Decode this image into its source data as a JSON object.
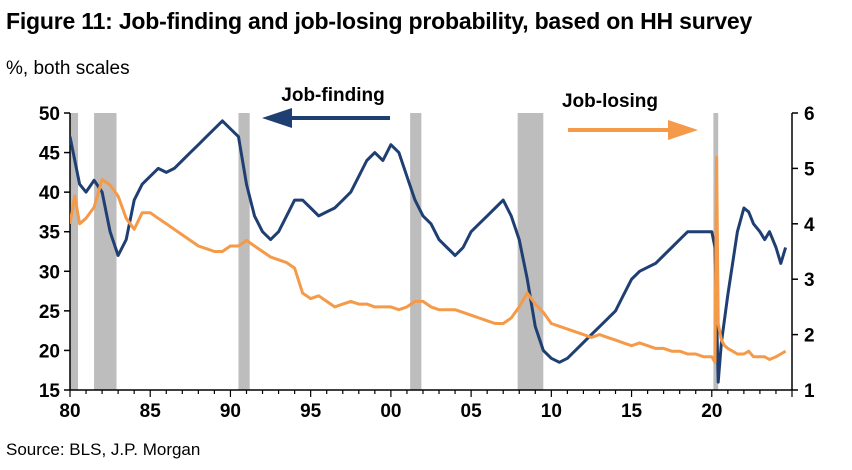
{
  "title": "Figure 11: Job-finding and job-losing probability, based on HH survey",
  "subtitle": "%, both scales",
  "source": "Source: BLS, J.P. Morgan",
  "colors": {
    "job_finding": "#1f3f73",
    "job_losing": "#f49a48",
    "recession": "#bdbdbd"
  },
  "chart_data": {
    "type": "line",
    "x_unit": "year",
    "x_tick_labels": [
      "80",
      "85",
      "90",
      "95",
      "00",
      "05",
      "10",
      "15",
      "20"
    ],
    "x_tick_values": [
      1980,
      1985,
      1990,
      1995,
      2000,
      2005,
      2010,
      2015,
      2020
    ],
    "xlim": [
      1980,
      2025
    ],
    "ylim_left": [
      15,
      50
    ],
    "y_ticks_left": [
      "50",
      "45",
      "40",
      "35",
      "30",
      "25",
      "20",
      "15"
    ],
    "y_tick_values_left": [
      50,
      45,
      40,
      35,
      30,
      25,
      20,
      15
    ],
    "ylim_right": [
      1,
      6
    ],
    "y_ticks_right": [
      "6",
      "5",
      "4",
      "3",
      "2",
      "1"
    ],
    "y_tick_values_right": [
      6,
      5,
      4,
      3,
      2,
      1
    ],
    "recessions": [
      [
        1980.0,
        1980.5
      ],
      [
        1981.5,
        1982.9
      ],
      [
        1990.5,
        1991.2
      ],
      [
        2001.2,
        2001.9
      ],
      [
        2007.9,
        2009.5
      ],
      [
        2020.1,
        2020.4
      ]
    ],
    "annotations": [
      {
        "text": "Job-finding",
        "arrow": "left",
        "axis": "left"
      },
      {
        "text": "Job-losing",
        "arrow": "right",
        "axis": "right"
      }
    ],
    "series": [
      {
        "name": "Job-finding",
        "axis": "left",
        "x": [
          1980.0,
          1980.3,
          1980.6,
          1981.0,
          1981.5,
          1982.0,
          1982.5,
          1983.0,
          1983.5,
          1984.0,
          1984.5,
          1985.0,
          1985.5,
          1986.0,
          1986.5,
          1987.0,
          1987.5,
          1988.0,
          1988.5,
          1989.0,
          1989.5,
          1990.0,
          1990.5,
          1991.0,
          1991.5,
          1992.0,
          1992.5,
          1993.0,
          1993.5,
          1994.0,
          1994.5,
          1995.0,
          1995.5,
          1996.0,
          1996.5,
          1997.0,
          1997.5,
          1998.0,
          1998.5,
          1999.0,
          1999.5,
          2000.0,
          2000.5,
          2001.0,
          2001.5,
          2002.0,
          2002.5,
          2003.0,
          2003.5,
          2004.0,
          2004.5,
          2005.0,
          2005.5,
          2006.0,
          2006.5,
          2007.0,
          2007.5,
          2008.0,
          2008.5,
          2009.0,
          2009.5,
          2010.0,
          2010.5,
          2011.0,
          2011.5,
          2012.0,
          2012.5,
          2013.0,
          2013.5,
          2014.0,
          2014.5,
          2015.0,
          2015.5,
          2016.0,
          2016.5,
          2017.0,
          2017.5,
          2018.0,
          2018.5,
          2019.0,
          2019.5,
          2020.0,
          2020.2,
          2020.4,
          2020.6,
          2020.8,
          2021.0,
          2021.3,
          2021.6,
          2022.0,
          2022.3,
          2022.6,
          2023.0,
          2023.3,
          2023.6,
          2024.0,
          2024.3,
          2024.6
        ],
        "values": [
          47,
          44,
          41,
          40,
          41.5,
          40,
          35,
          32,
          34,
          39,
          41,
          42,
          43,
          42.5,
          43,
          44,
          45,
          46,
          47,
          48,
          49,
          48,
          47,
          41,
          37,
          35,
          34,
          35,
          37,
          39,
          39,
          38,
          37,
          37.5,
          38,
          39,
          40,
          42,
          44,
          45,
          44,
          46,
          45,
          42,
          39,
          37,
          36,
          34,
          33,
          32,
          33,
          35,
          36,
          37,
          38,
          39,
          37,
          34,
          29,
          23,
          20,
          19,
          18.5,
          19,
          20,
          21,
          22,
          23,
          24,
          25,
          27,
          29,
          30,
          30.5,
          31,
          32,
          33,
          34,
          35,
          35,
          35,
          35,
          33,
          16,
          21,
          24,
          27,
          31,
          35,
          38,
          37.5,
          36,
          35,
          34,
          35,
          33,
          31,
          33
        ]
      },
      {
        "name": "Job-losing",
        "axis": "right",
        "x": [
          1980.0,
          1980.3,
          1980.6,
          1981.0,
          1981.5,
          1982.0,
          1982.5,
          1983.0,
          1983.5,
          1984.0,
          1984.5,
          1985.0,
          1985.5,
          1986.0,
          1986.5,
          1987.0,
          1987.5,
          1988.0,
          1988.5,
          1989.0,
          1989.5,
          1990.0,
          1990.5,
          1991.0,
          1991.5,
          1992.0,
          1992.5,
          1993.0,
          1993.5,
          1994.0,
          1994.5,
          1995.0,
          1995.5,
          1996.0,
          1996.5,
          1997.0,
          1997.5,
          1998.0,
          1998.5,
          1999.0,
          1999.5,
          2000.0,
          2000.5,
          2001.0,
          2001.5,
          2002.0,
          2002.5,
          2003.0,
          2003.5,
          2004.0,
          2004.5,
          2005.0,
          2005.5,
          2006.0,
          2006.5,
          2007.0,
          2007.5,
          2008.0,
          2008.5,
          2009.0,
          2009.5,
          2010.0,
          2010.5,
          2011.0,
          2011.5,
          2012.0,
          2012.5,
          2013.0,
          2013.5,
          2014.0,
          2014.5,
          2015.0,
          2015.5,
          2016.0,
          2016.5,
          2017.0,
          2017.5,
          2018.0,
          2018.5,
          2019.0,
          2019.5,
          2020.0,
          2020.2,
          2020.3,
          2020.4,
          2020.6,
          2020.8,
          2021.0,
          2021.3,
          2021.6,
          2022.0,
          2022.3,
          2022.6,
          2023.0,
          2023.3,
          2023.6,
          2024.0,
          2024.3,
          2024.6
        ],
        "values": [
          4.0,
          4.5,
          4.0,
          4.1,
          4.3,
          4.8,
          4.7,
          4.5,
          4.1,
          3.9,
          4.2,
          4.2,
          4.1,
          4.0,
          3.9,
          3.8,
          3.7,
          3.6,
          3.55,
          3.5,
          3.5,
          3.6,
          3.6,
          3.7,
          3.6,
          3.5,
          3.4,
          3.35,
          3.3,
          3.2,
          2.75,
          2.65,
          2.7,
          2.6,
          2.5,
          2.55,
          2.6,
          2.55,
          2.55,
          2.5,
          2.5,
          2.5,
          2.45,
          2.5,
          2.6,
          2.6,
          2.5,
          2.45,
          2.45,
          2.45,
          2.4,
          2.35,
          2.3,
          2.25,
          2.2,
          2.2,
          2.3,
          2.5,
          2.75,
          2.55,
          2.4,
          2.2,
          2.15,
          2.1,
          2.05,
          2.0,
          1.95,
          2.0,
          1.95,
          1.9,
          1.85,
          1.8,
          1.85,
          1.8,
          1.75,
          1.75,
          1.7,
          1.7,
          1.65,
          1.65,
          1.6,
          1.6,
          1.5,
          5.2,
          2.2,
          1.9,
          1.8,
          1.75,
          1.7,
          1.65,
          1.65,
          1.7,
          1.6,
          1.6,
          1.6,
          1.55,
          1.6,
          1.65,
          1.7
        ]
      }
    ]
  }
}
